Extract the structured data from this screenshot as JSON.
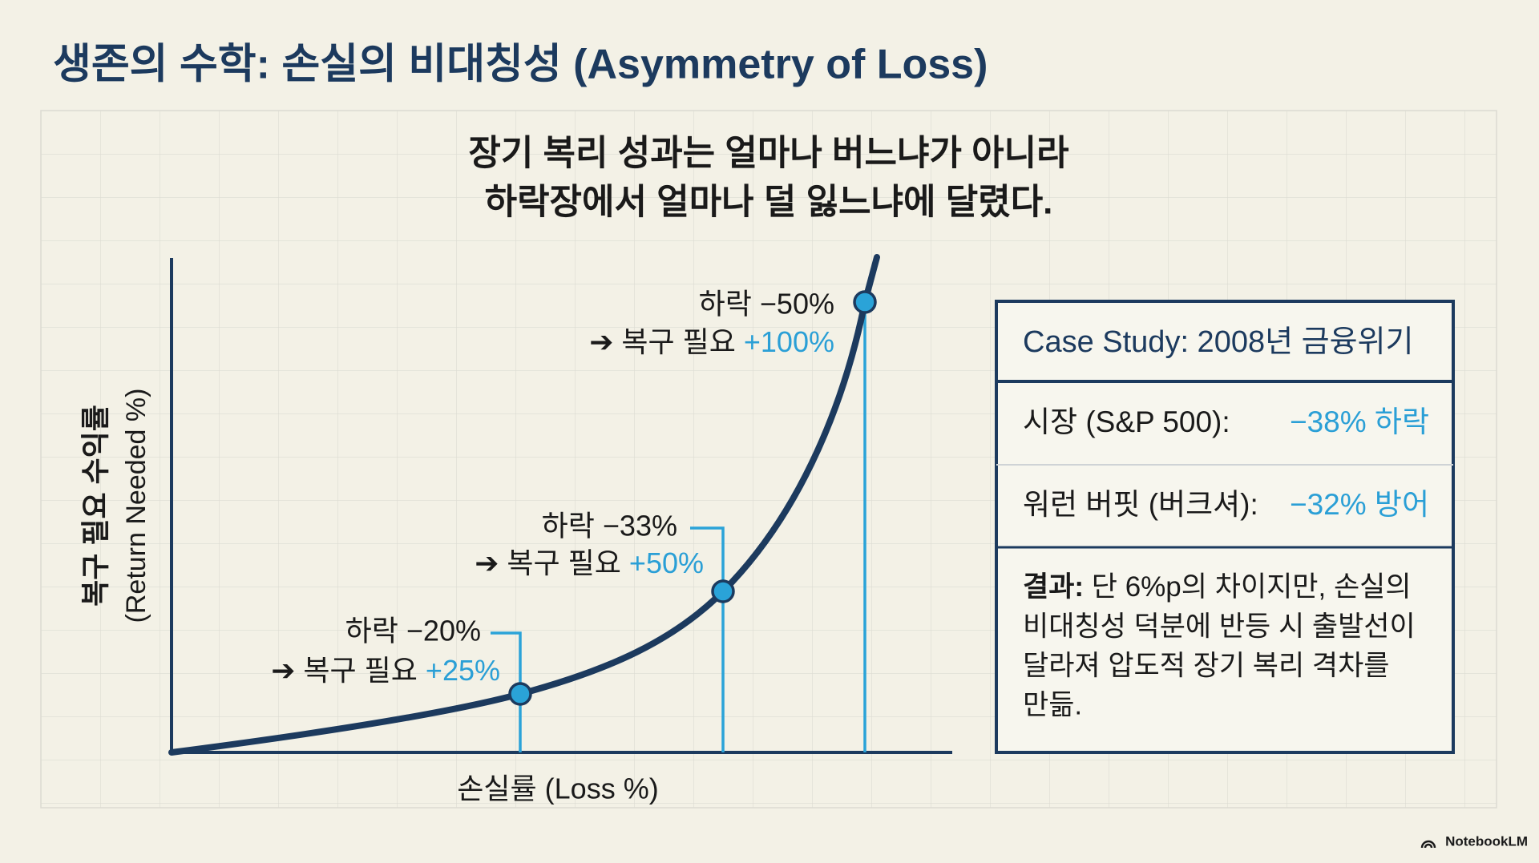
{
  "header": {
    "title": "생존의 수학: 손실의 비대칭성 (Asymmetry of Loss)"
  },
  "subtitle": {
    "lines": [
      "장기 복리 성과는 얼마나 버느냐가 아니라",
      "하락장에서 얼마나 덜 잃느냐에 달렸다."
    ]
  },
  "chart": {
    "y_axis_label": {
      "lines": [
        "복구 필요 수익률",
        "(Return Needed %)"
      ]
    },
    "x_axis_label": "손실률 (Loss %)",
    "annotations": [
      {
        "loss": "하락 −20%",
        "arrow": "➔",
        "recovery_label": "복구 필요",
        "recovery": "+25%"
      },
      {
        "loss": "하락 −33%",
        "arrow": "➔",
        "recovery_label": "복구 필요",
        "recovery": "+50%"
      },
      {
        "loss": "하락 −50%",
        "arrow": "➔",
        "recovery_label": "복구 필요",
        "recovery": "+100%"
      }
    ]
  },
  "case_study": {
    "title": "Case Study: 2008년 금융위기",
    "rows": [
      {
        "label": "시장 (S&P 500):",
        "value": "−38% 하락"
      },
      {
        "label": "워런 버핏 (버크셔):",
        "value": "−32% 방어"
      }
    ],
    "result": {
      "label": "결과:",
      "lines": [
        "단 6%p의 차이지만, 손실의",
        "비대칭성 덕분에 반등 시 출발선이",
        "달라져 압도적 장기 복리 격차를",
        "만듦."
      ]
    }
  },
  "footer": {
    "brand": "NotebookLM"
  }
}
